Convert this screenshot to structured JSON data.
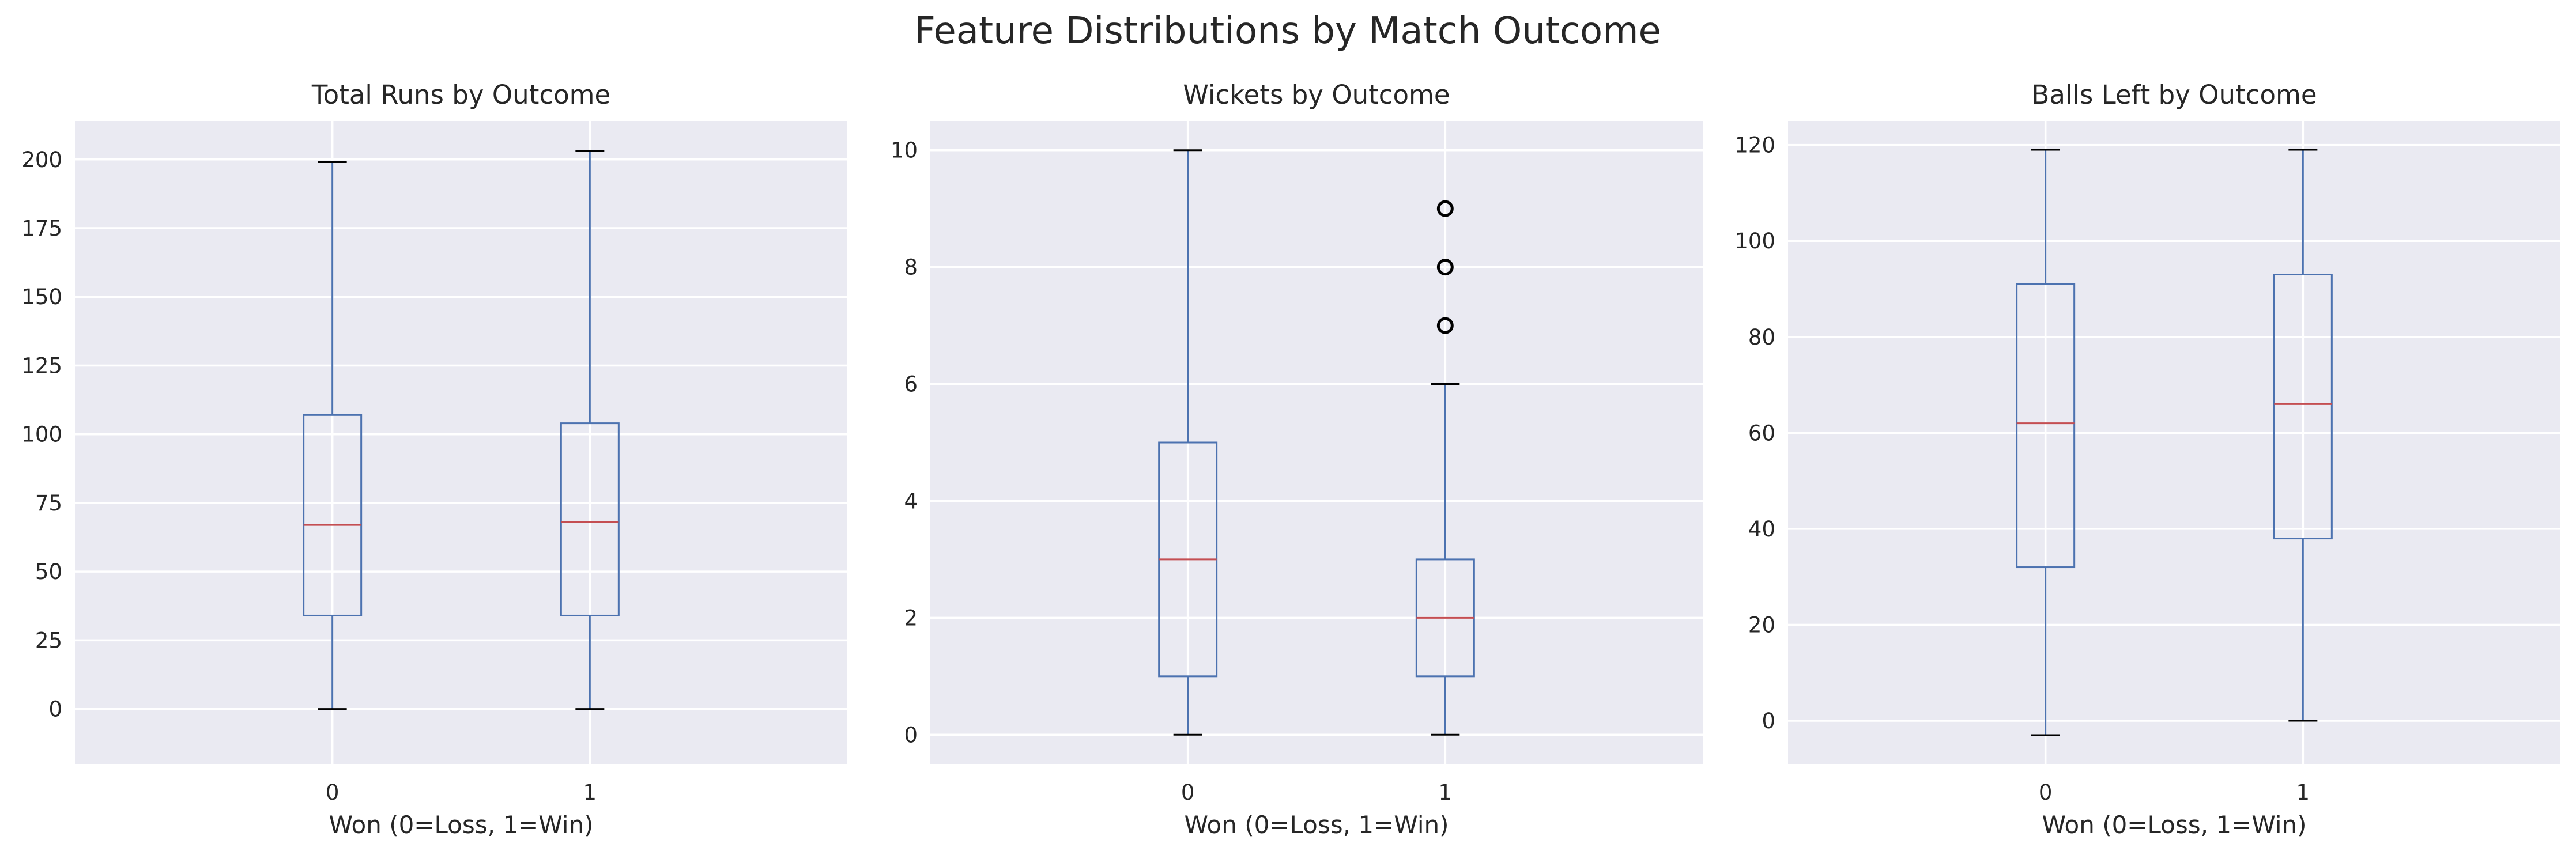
{
  "figure": {
    "suptitle": "Feature Distributions by Match Outcome"
  },
  "chart_data": [
    {
      "type": "box",
      "title": "Total Runs by Outcome",
      "xlabel": "Won (0=Loss, 1=Win)",
      "ylabel": "",
      "categories": [
        "0",
        "1"
      ],
      "ylim": [
        -20,
        214
      ],
      "yticks": [
        0,
        25,
        50,
        75,
        100,
        125,
        150,
        175,
        200
      ],
      "grid": true,
      "boxes": [
        {
          "category": "0",
          "whisker_low": 0,
          "q1": 34,
          "median": 67,
          "q3": 107,
          "whisker_high": 199,
          "outliers": []
        },
        {
          "category": "1",
          "whisker_low": 0,
          "q1": 34,
          "median": 68,
          "q3": 104,
          "whisker_high": 203,
          "outliers": []
        }
      ]
    },
    {
      "type": "box",
      "title": "Wickets by Outcome",
      "xlabel": "Won (0=Loss, 1=Win)",
      "ylabel": "",
      "categories": [
        "0",
        "1"
      ],
      "ylim": [
        -0.5,
        10.5
      ],
      "yticks": [
        0,
        2,
        4,
        6,
        8,
        10
      ],
      "grid": true,
      "boxes": [
        {
          "category": "0",
          "whisker_low": 0,
          "q1": 1,
          "median": 3,
          "q3": 5,
          "whisker_high": 10,
          "outliers": []
        },
        {
          "category": "1",
          "whisker_low": 0,
          "q1": 1,
          "median": 2,
          "q3": 3,
          "whisker_high": 6,
          "outliers": [
            7,
            8,
            9
          ]
        }
      ]
    },
    {
      "type": "box",
      "title": "Balls Left by Outcome",
      "xlabel": "Won (0=Loss, 1=Win)",
      "ylabel": "",
      "categories": [
        "0",
        "1"
      ],
      "ylim": [
        -9,
        125
      ],
      "yticks": [
        0,
        20,
        40,
        60,
        80,
        100,
        120
      ],
      "grid": true,
      "boxes": [
        {
          "category": "0",
          "whisker_low": -3,
          "q1": 32,
          "median": 62,
          "q3": 91,
          "whisker_high": 119,
          "outliers": []
        },
        {
          "category": "1",
          "whisker_low": 0,
          "q1": 38,
          "median": 66,
          "q3": 93,
          "whisker_high": 119,
          "outliers": []
        }
      ]
    }
  ],
  "colors": {
    "axes_background": "#eaeaf2",
    "grid": "#ffffff",
    "box": "#4c72b0",
    "median": "#c44e52",
    "outlier": "#000000",
    "text": "#262626"
  }
}
